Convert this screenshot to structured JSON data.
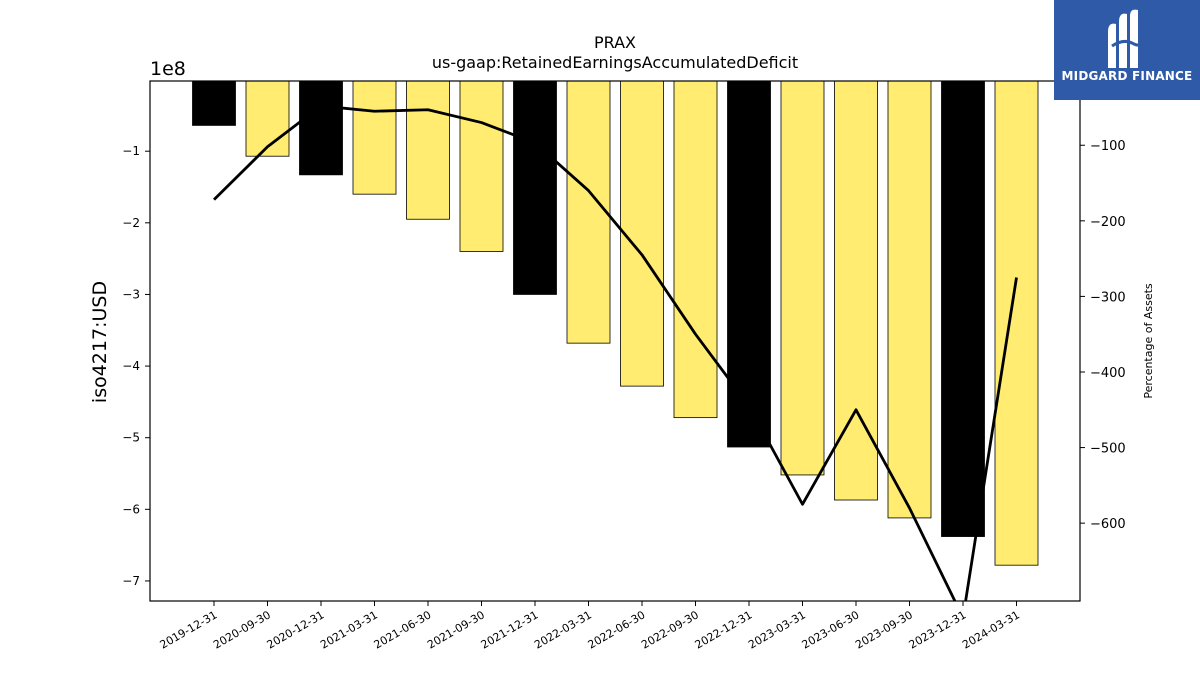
{
  "chart_data": {
    "type": "bar",
    "title": "PRAX",
    "subtitle": "us-gaap:RetainedEarningsAccumulatedDeficit",
    "ylabel": "iso4217:USD",
    "y_multiplier_label": "1e8",
    "y2label": "Percentage of Assets",
    "categories": [
      "2019-12-31",
      "2020-09-30",
      "2020-12-31",
      "2021-03-31",
      "2021-06-30",
      "2021-09-30",
      "2021-12-31",
      "2022-03-31",
      "2022-06-30",
      "2022-09-30",
      "2022-12-31",
      "2023-03-31",
      "2023-06-30",
      "2023-09-30",
      "2023-12-31",
      "2024-03-31"
    ],
    "bar_values_1e8": [
      -0.64,
      -1.07,
      -1.33,
      -1.6,
      -1.95,
      -2.4,
      -3.0,
      -3.68,
      -4.28,
      -4.72,
      -5.13,
      -5.52,
      -5.87,
      -6.12,
      -6.38,
      -6.78
    ],
    "bar_colors": [
      "#000000",
      "#ffec70",
      "#000000",
      "#ffec70",
      "#ffec70",
      "#ffec70",
      "#000000",
      "#ffec70",
      "#ffec70",
      "#ffec70",
      "#000000",
      "#ffec70",
      "#ffec70",
      "#ffec70",
      "#000000",
      "#ffec70"
    ],
    "ylim": [
      -7.28,
      -0.02
    ],
    "yticks": [
      -1,
      -2,
      -3,
      -4,
      -5,
      -6,
      -7
    ],
    "ytick_labels": [
      "−1",
      "−2",
      "−3",
      "−4",
      "−5",
      "−6",
      "−7"
    ],
    "line_series": {
      "values": [
        -172,
        -102,
        -48,
        -55,
        -53,
        -70,
        -97,
        -160,
        -245,
        -350,
        -445,
        -575,
        -450,
        -580,
        -725,
        -275
      ],
      "color": "#000000"
    },
    "y2lim": [
      -703,
      -15
    ],
    "y2ticks": [
      -100,
      -200,
      -300,
      -400,
      -500,
      -600
    ],
    "y2tick_labels": [
      "−100",
      "−200",
      "−300",
      "−400",
      "−500",
      "−600"
    ],
    "grid": false
  },
  "logo": {
    "text": "MIDGARD FINANCE",
    "bg_color": "#2f5aa8"
  }
}
